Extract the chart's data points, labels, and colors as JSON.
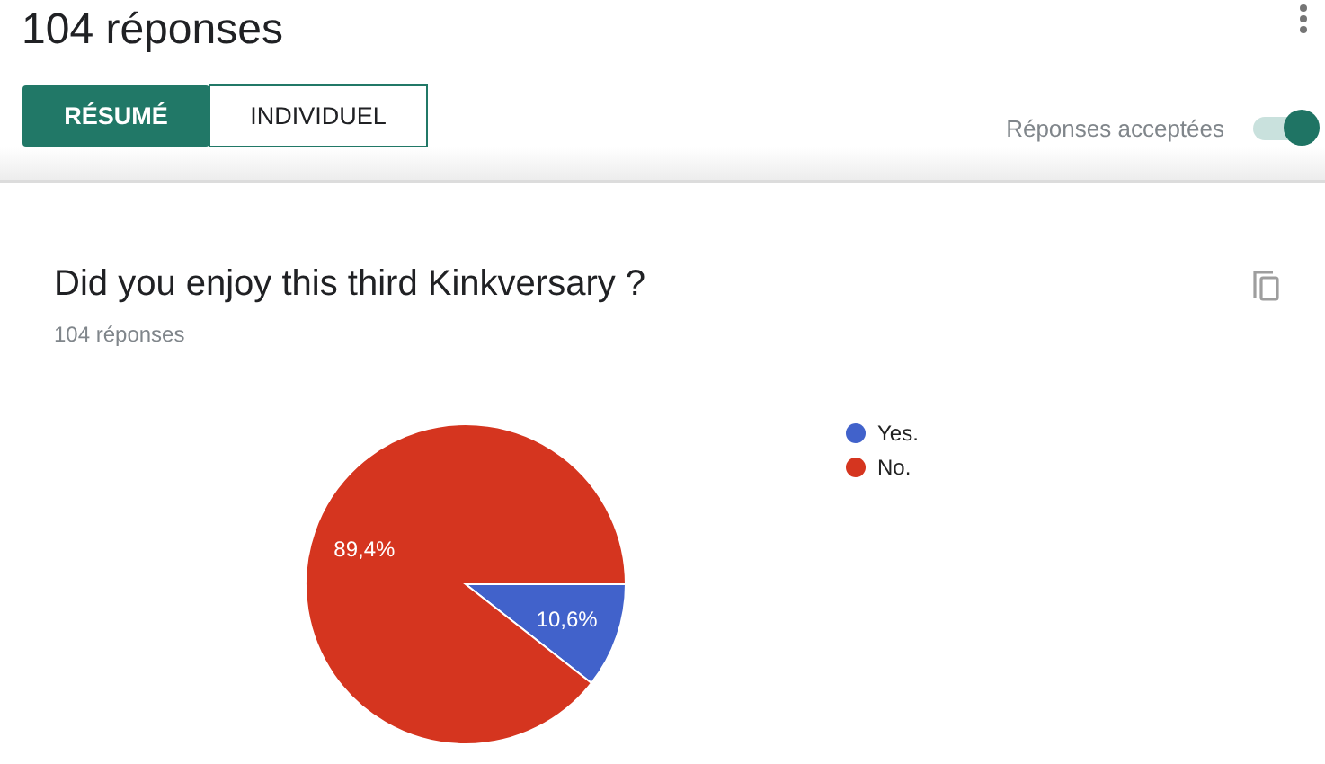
{
  "chart_data": {
    "type": "pie",
    "title": "Did you enjoy this third Kinkversary ?",
    "subtitle": "104 réponses",
    "categories": [
      "Yes.",
      "No."
    ],
    "values": [
      10.6,
      89.4
    ],
    "colors": [
      "#4162cb",
      "#d5351f"
    ],
    "value_labels": [
      "10,6%",
      "89,4%"
    ],
    "legend": "top right",
    "annotations": [
      "104 réponses",
      "RÉSUMÉ",
      "INDIVIDUEL",
      "Réponses acceptées"
    ]
  }
}
